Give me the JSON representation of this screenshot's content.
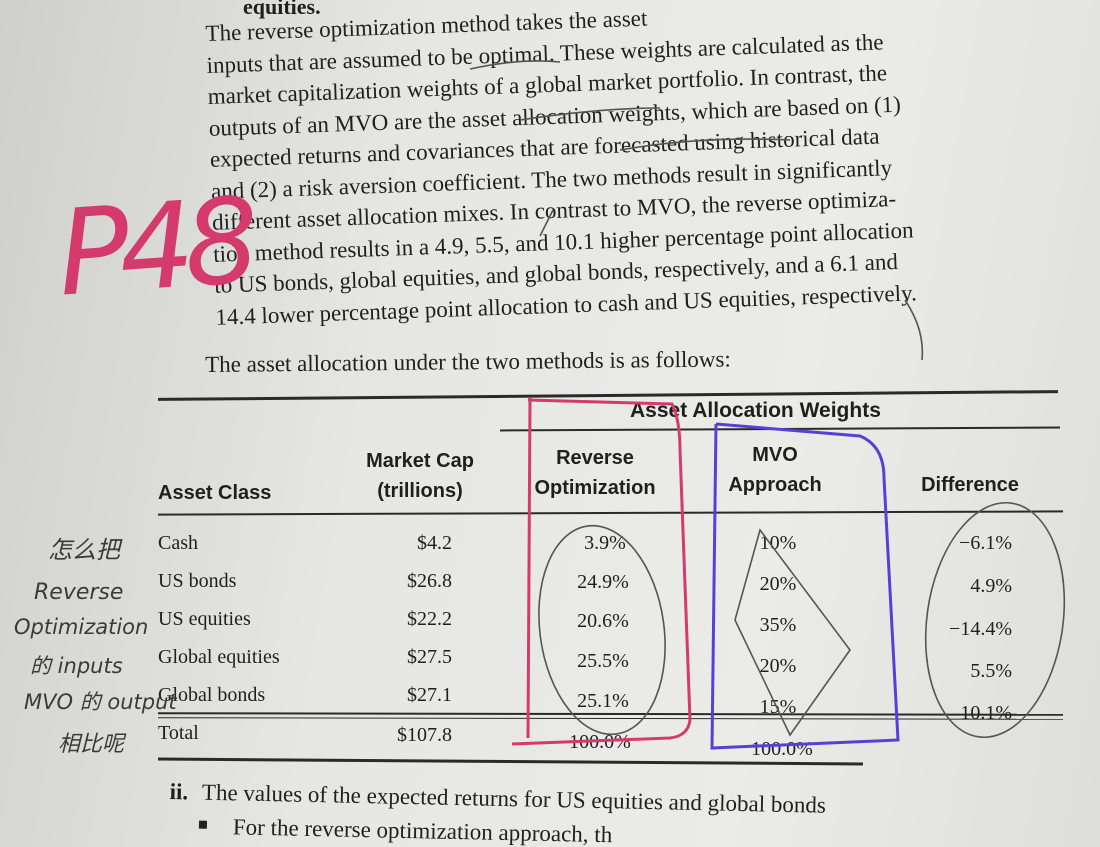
{
  "heading_fragment": "equities.",
  "paragraph_lines": [
    "The reverse optimization method takes the asset",
    "inputs that are assumed to be optimal. These weights are calculated as the",
    "market capitalization weights of a global market portfolio. In contrast, the",
    "outputs of an MVO are the asset allocation weights, which are based on (1)",
    "expected returns and covariances that are forecasted using historical data",
    "and (2) a risk aversion coefficient. The two methods result in significantly",
    "different asset allocation mixes. In contrast to MVO, the reverse optimiza-",
    "tion method results in a 4.9, 5.5, and 10.1 higher percentage point allocation",
    "to US bonds, global equities, and global bonds, respectively, and a 6.1 and",
    "14.4 lower percentage point allocation to cash and US equities, respectively."
  ],
  "intro_sentence": "The asset allocation under the two methods is as follows:",
  "table": {
    "group_header": "Asset Allocation Weights",
    "columns": {
      "asset_class": "Asset Class",
      "market_cap": [
        "Market Cap",
        "(trillions)"
      ],
      "reverse": [
        "Reverse",
        "Optimization"
      ],
      "mvo": [
        "MVO",
        "Approach"
      ],
      "difference": "Difference"
    },
    "rows": [
      {
        "asset": "Cash",
        "cap": "$4.2",
        "reverse": "3.9%",
        "mvo": "10%",
        "diff": "−6.1%"
      },
      {
        "asset": "US bonds",
        "cap": "$26.8",
        "reverse": "24.9%",
        "mvo": "20%",
        "diff": "4.9%"
      },
      {
        "asset": "US equities",
        "cap": "$22.2",
        "reverse": "20.6%",
        "mvo": "35%",
        "diff": "−14.4%"
      },
      {
        "asset": "Global equities",
        "cap": "$27.5",
        "reverse": "25.5%",
        "mvo": "20%",
        "diff": "5.5%"
      },
      {
        "asset": "Global bonds",
        "cap": "$27.1",
        "reverse": "25.1%",
        "mvo": "15%",
        "diff": "10.1%"
      }
    ],
    "total": {
      "asset": "Total",
      "cap": "$107.8",
      "reverse": "100.0%",
      "mvo": "100.0%"
    }
  },
  "footer": {
    "item_marker": "ii.",
    "item_text": "The values of the expected returns for US equities and global bonds",
    "bullet_text": "For the reverse optimization approach, th"
  },
  "handwriting": {
    "page_note": "P48",
    "margin_note_lines": [
      "怎么把",
      "Reverse",
      "Optimization",
      "的 inputs",
      "MVO 的 output",
      "相比呢"
    ]
  },
  "colors": {
    "pink_ink": "#d43a6e",
    "blue_ink": "#5a3fd6",
    "pencil": "#555555"
  }
}
